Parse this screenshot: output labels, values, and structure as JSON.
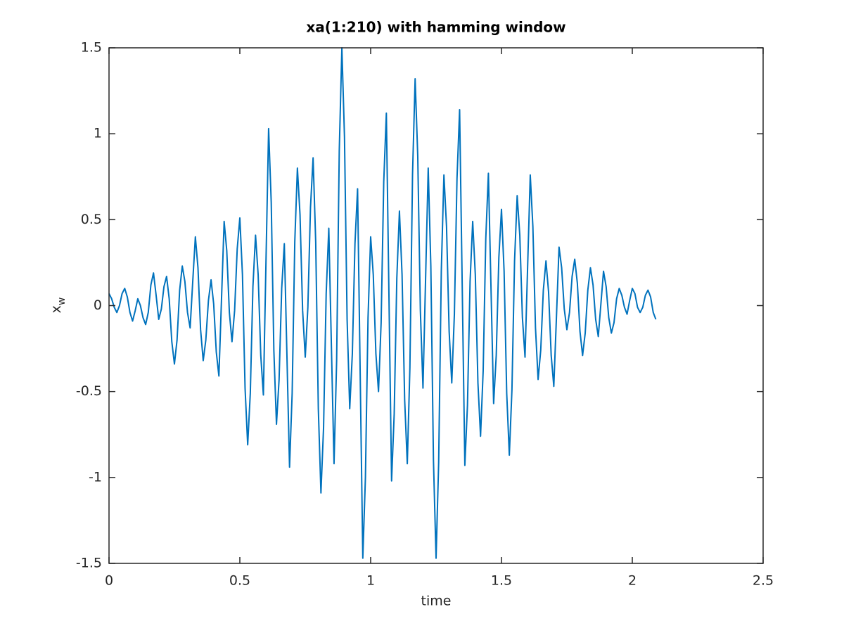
{
  "chart_data": {
    "type": "line",
    "title": "xa(1:210) with hamming window",
    "xlabel": "time",
    "ylabel": "x",
    "ylabel_subscript": "w",
    "color": "#0072bd",
    "xlim": [
      0,
      2.5
    ],
    "xticks": [
      0,
      0.5,
      1,
      1.5,
      2,
      2.5
    ],
    "ylim": [
      -1.5,
      1.5
    ],
    "yticks": [
      -1.5,
      -1,
      -0.5,
      0,
      0.5,
      1,
      1.5
    ],
    "grid": false,
    "box": true,
    "x": [
      0,
      0.01,
      0.02,
      0.03,
      0.04,
      0.05,
      0.06,
      0.07,
      0.08,
      0.09,
      0.1,
      0.11,
      0.12,
      0.13,
      0.14,
      0.15,
      0.16,
      0.17,
      0.18,
      0.19,
      0.2,
      0.21,
      0.22,
      0.23,
      0.24,
      0.25,
      0.26,
      0.27,
      0.28,
      0.29,
      0.3,
      0.31,
      0.32,
      0.33,
      0.34,
      0.35,
      0.36,
      0.37,
      0.38,
      0.39,
      0.4,
      0.41,
      0.42,
      0.43,
      0.44,
      0.45,
      0.46,
      0.47,
      0.48,
      0.49,
      0.5,
      0.51,
      0.52,
      0.53,
      0.54,
      0.55,
      0.56,
      0.57,
      0.58,
      0.59,
      0.6,
      0.61,
      0.62,
      0.63,
      0.64,
      0.65,
      0.66,
      0.67,
      0.68,
      0.69,
      0.7,
      0.71,
      0.72,
      0.73,
      0.74,
      0.75,
      0.76,
      0.77,
      0.78,
      0.79,
      0.8,
      0.81,
      0.82,
      0.83,
      0.84,
      0.85,
      0.86,
      0.87,
      0.88,
      0.89,
      0.9,
      0.91,
      0.92,
      0.93,
      0.94,
      0.95,
      0.96,
      0.97,
      0.98,
      0.99,
      1,
      1.01,
      1.02,
      1.03,
      1.04,
      1.05,
      1.06,
      1.07,
      1.08,
      1.09,
      1.1,
      1.11,
      1.12,
      1.13,
      1.14,
      1.15,
      1.16,
      1.17,
      1.18,
      1.19,
      1.2,
      1.21,
      1.22,
      1.23,
      1.24,
      1.25,
      1.26,
      1.27,
      1.28,
      1.29,
      1.3,
      1.31,
      1.32,
      1.33,
      1.34,
      1.35,
      1.36,
      1.37,
      1.38,
      1.39,
      1.4,
      1.41,
      1.42,
      1.43,
      1.44,
      1.45,
      1.46,
      1.47,
      1.48,
      1.49,
      1.5,
      1.51,
      1.52,
      1.53,
      1.54,
      1.55,
      1.56,
      1.57,
      1.58,
      1.59,
      1.6,
      1.61,
      1.62,
      1.63,
      1.64,
      1.65,
      1.66,
      1.67,
      1.68,
      1.69,
      1.7,
      1.71,
      1.72,
      1.73,
      1.74,
      1.75,
      1.76,
      1.77,
      1.78,
      1.79,
      1.8,
      1.81,
      1.82,
      1.83,
      1.84,
      1.85,
      1.86,
      1.87,
      1.88,
      1.89,
      1.9,
      1.91,
      1.92,
      1.93,
      1.94,
      1.95,
      1.96,
      1.97,
      1.98,
      1.99,
      2,
      2.01,
      2.02,
      2.03,
      2.04,
      2.05,
      2.06,
      2.07,
      2.08,
      2.09
    ],
    "values": [
      0.07,
      0.04,
      -0.01,
      -0.04,
      0,
      0.07,
      0.1,
      0.05,
      -0.04,
      -0.09,
      -0.03,
      0.04,
      0,
      -0.07,
      -0.11,
      -0.04,
      0.12,
      0.19,
      0.06,
      -0.08,
      -0.02,
      0.11,
      0.17,
      0.04,
      -0.21,
      -0.34,
      -0.2,
      0.09,
      0.23,
      0.14,
      -0.04,
      -0.13,
      0.14,
      0.4,
      0.22,
      -0.14,
      -0.32,
      -0.2,
      0.03,
      0.15,
      0.01,
      -0.27,
      -0.41,
      0.04,
      0.49,
      0.32,
      -0.04,
      -0.21,
      -0.03,
      0.33,
      0.51,
      0.18,
      -0.48,
      -0.81,
      -0.51,
      0.11,
      0.41,
      0.18,
      -0.29,
      -0.52,
      0.26,
      1.03,
      0.6,
      -0.26,
      -0.69,
      -0.43,
      0.1,
      0.36,
      -0.29,
      -0.94,
      -0.51,
      0.37,
      0.8,
      0.53,
      -0.03,
      -0.3,
      -0.01,
      0.57,
      0.86,
      0.37,
      -0.6,
      -1.09,
      -0.71,
      0.07,
      0.45,
      -0.24,
      -0.92,
      -0.32,
      0.9,
      1.5,
      0.98,
      -0.08,
      -0.6,
      -0.28,
      0.36,
      0.68,
      -0.4,
      -1.47,
      -1,
      -0.07,
      0.4,
      0.18,
      -0.28,
      -0.5,
      -0.1,
      0.72,
      1.12,
      0.05,
      -1.02,
      -0.63,
      0.16,
      0.55,
      0.18,
      -0.55,
      -0.92,
      -0.36,
      0.76,
      1.32,
      0.87,
      -0.03,
      -0.48,
      0.16,
      0.8,
      0.23,
      -0.9,
      -1.47,
      -0.91,
      0.2,
      0.76,
      0.46,
      -0.15,
      -0.45,
      -0.05,
      0.74,
      1.14,
      0.11,
      -0.93,
      -0.58,
      0.14,
      0.49,
      0.18,
      -0.45,
      -0.76,
      -0.38,
      0.39,
      0.77,
      0.1,
      -0.57,
      -0.29,
      0.28,
      0.56,
      0.2,
      -0.51,
      -0.87,
      -0.49,
      0.26,
      0.64,
      0.41,
      -0.07,
      -0.3,
      0.23,
      0.76,
      0.46,
      -0.13,
      -0.43,
      -0.26,
      0.09,
      0.26,
      0.08,
      -0.29,
      -0.47,
      -0.07,
      0.34,
      0.22,
      -0.02,
      -0.14,
      -0.04,
      0.17,
      0.27,
      0.13,
      -0.15,
      -0.29,
      -0.16,
      0.09,
      0.22,
      0.12,
      -0.08,
      -0.18,
      0.01,
      0.2,
      0.11,
      -0.07,
      -0.16,
      -0.1,
      0.04,
      0.1,
      0.06,
      -0.01,
      -0.05,
      0.03,
      0.1,
      0.07,
      -0.01,
      -0.04,
      -0.01,
      0.06,
      0.09,
      0.05,
      -0.04,
      -0.08
    ]
  }
}
